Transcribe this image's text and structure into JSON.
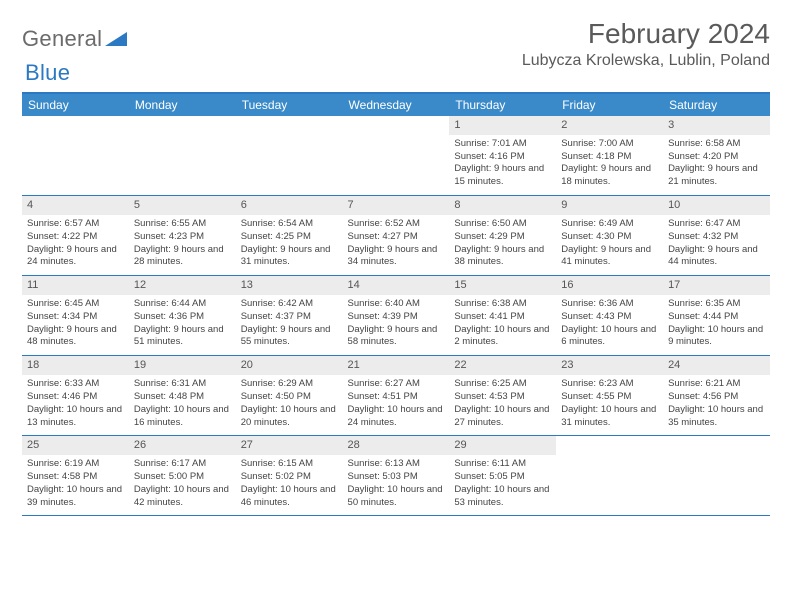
{
  "brand": {
    "word1": "General",
    "word2": "Blue"
  },
  "title": "February 2024",
  "location": "Lubycza Krolewska, Lublin, Poland",
  "colors": {
    "header_bg": "#3a8ac9",
    "header_text": "#ffffff",
    "divider": "#2b79c2",
    "daynum_bg": "#ececec",
    "body_text": "#444444",
    "logo_grey": "#6b6b6b",
    "logo_blue": "#2b79c2",
    "page_bg": "#ffffff"
  },
  "days_of_week": [
    "Sunday",
    "Monday",
    "Tuesday",
    "Wednesday",
    "Thursday",
    "Friday",
    "Saturday"
  ],
  "weeks": [
    [
      null,
      null,
      null,
      null,
      {
        "n": "1",
        "sunrise": "Sunrise: 7:01 AM",
        "sunset": "Sunset: 4:16 PM",
        "daylight": "Daylight: 9 hours and 15 minutes."
      },
      {
        "n": "2",
        "sunrise": "Sunrise: 7:00 AM",
        "sunset": "Sunset: 4:18 PM",
        "daylight": "Daylight: 9 hours and 18 minutes."
      },
      {
        "n": "3",
        "sunrise": "Sunrise: 6:58 AM",
        "sunset": "Sunset: 4:20 PM",
        "daylight": "Daylight: 9 hours and 21 minutes."
      }
    ],
    [
      {
        "n": "4",
        "sunrise": "Sunrise: 6:57 AM",
        "sunset": "Sunset: 4:22 PM",
        "daylight": "Daylight: 9 hours and 24 minutes."
      },
      {
        "n": "5",
        "sunrise": "Sunrise: 6:55 AM",
        "sunset": "Sunset: 4:23 PM",
        "daylight": "Daylight: 9 hours and 28 minutes."
      },
      {
        "n": "6",
        "sunrise": "Sunrise: 6:54 AM",
        "sunset": "Sunset: 4:25 PM",
        "daylight": "Daylight: 9 hours and 31 minutes."
      },
      {
        "n": "7",
        "sunrise": "Sunrise: 6:52 AM",
        "sunset": "Sunset: 4:27 PM",
        "daylight": "Daylight: 9 hours and 34 minutes."
      },
      {
        "n": "8",
        "sunrise": "Sunrise: 6:50 AM",
        "sunset": "Sunset: 4:29 PM",
        "daylight": "Daylight: 9 hours and 38 minutes."
      },
      {
        "n": "9",
        "sunrise": "Sunrise: 6:49 AM",
        "sunset": "Sunset: 4:30 PM",
        "daylight": "Daylight: 9 hours and 41 minutes."
      },
      {
        "n": "10",
        "sunrise": "Sunrise: 6:47 AM",
        "sunset": "Sunset: 4:32 PM",
        "daylight": "Daylight: 9 hours and 44 minutes."
      }
    ],
    [
      {
        "n": "11",
        "sunrise": "Sunrise: 6:45 AM",
        "sunset": "Sunset: 4:34 PM",
        "daylight": "Daylight: 9 hours and 48 minutes."
      },
      {
        "n": "12",
        "sunrise": "Sunrise: 6:44 AM",
        "sunset": "Sunset: 4:36 PM",
        "daylight": "Daylight: 9 hours and 51 minutes."
      },
      {
        "n": "13",
        "sunrise": "Sunrise: 6:42 AM",
        "sunset": "Sunset: 4:37 PM",
        "daylight": "Daylight: 9 hours and 55 minutes."
      },
      {
        "n": "14",
        "sunrise": "Sunrise: 6:40 AM",
        "sunset": "Sunset: 4:39 PM",
        "daylight": "Daylight: 9 hours and 58 minutes."
      },
      {
        "n": "15",
        "sunrise": "Sunrise: 6:38 AM",
        "sunset": "Sunset: 4:41 PM",
        "daylight": "Daylight: 10 hours and 2 minutes."
      },
      {
        "n": "16",
        "sunrise": "Sunrise: 6:36 AM",
        "sunset": "Sunset: 4:43 PM",
        "daylight": "Daylight: 10 hours and 6 minutes."
      },
      {
        "n": "17",
        "sunrise": "Sunrise: 6:35 AM",
        "sunset": "Sunset: 4:44 PM",
        "daylight": "Daylight: 10 hours and 9 minutes."
      }
    ],
    [
      {
        "n": "18",
        "sunrise": "Sunrise: 6:33 AM",
        "sunset": "Sunset: 4:46 PM",
        "daylight": "Daylight: 10 hours and 13 minutes."
      },
      {
        "n": "19",
        "sunrise": "Sunrise: 6:31 AM",
        "sunset": "Sunset: 4:48 PM",
        "daylight": "Daylight: 10 hours and 16 minutes."
      },
      {
        "n": "20",
        "sunrise": "Sunrise: 6:29 AM",
        "sunset": "Sunset: 4:50 PM",
        "daylight": "Daylight: 10 hours and 20 minutes."
      },
      {
        "n": "21",
        "sunrise": "Sunrise: 6:27 AM",
        "sunset": "Sunset: 4:51 PM",
        "daylight": "Daylight: 10 hours and 24 minutes."
      },
      {
        "n": "22",
        "sunrise": "Sunrise: 6:25 AM",
        "sunset": "Sunset: 4:53 PM",
        "daylight": "Daylight: 10 hours and 27 minutes."
      },
      {
        "n": "23",
        "sunrise": "Sunrise: 6:23 AM",
        "sunset": "Sunset: 4:55 PM",
        "daylight": "Daylight: 10 hours and 31 minutes."
      },
      {
        "n": "24",
        "sunrise": "Sunrise: 6:21 AM",
        "sunset": "Sunset: 4:56 PM",
        "daylight": "Daylight: 10 hours and 35 minutes."
      }
    ],
    [
      {
        "n": "25",
        "sunrise": "Sunrise: 6:19 AM",
        "sunset": "Sunset: 4:58 PM",
        "daylight": "Daylight: 10 hours and 39 minutes."
      },
      {
        "n": "26",
        "sunrise": "Sunrise: 6:17 AM",
        "sunset": "Sunset: 5:00 PM",
        "daylight": "Daylight: 10 hours and 42 minutes."
      },
      {
        "n": "27",
        "sunrise": "Sunrise: 6:15 AM",
        "sunset": "Sunset: 5:02 PM",
        "daylight": "Daylight: 10 hours and 46 minutes."
      },
      {
        "n": "28",
        "sunrise": "Sunrise: 6:13 AM",
        "sunset": "Sunset: 5:03 PM",
        "daylight": "Daylight: 10 hours and 50 minutes."
      },
      {
        "n": "29",
        "sunrise": "Sunrise: 6:11 AM",
        "sunset": "Sunset: 5:05 PM",
        "daylight": "Daylight: 10 hours and 53 minutes."
      },
      null,
      null
    ]
  ]
}
